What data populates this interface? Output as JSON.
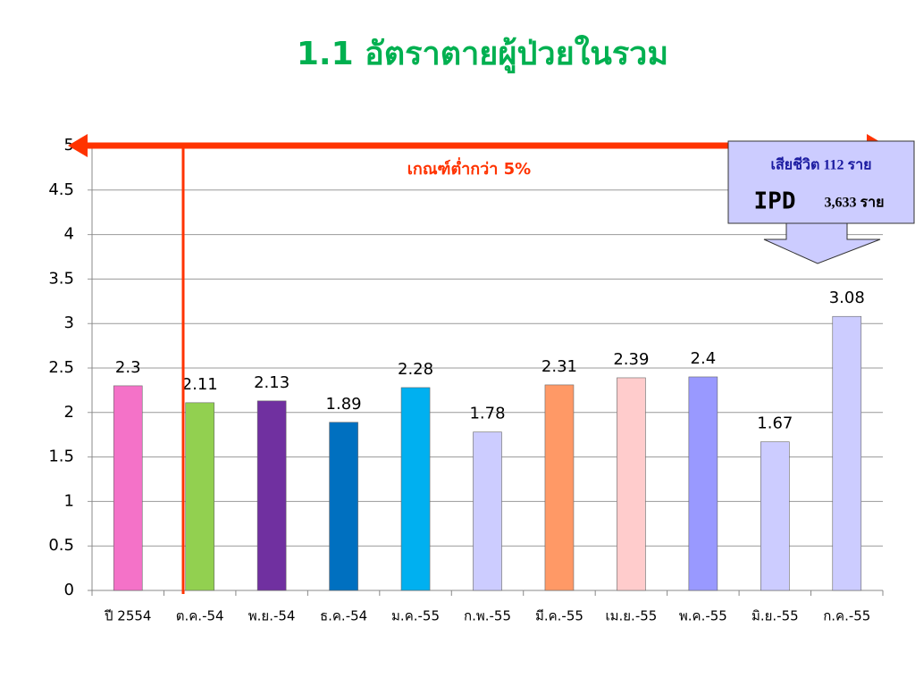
{
  "chart_data": {
    "type": "bar",
    "title": "1.1 อัตราตายผู้ป่วยในรวม",
    "categories": [
      "ปี 2554",
      "ต.ค.-54",
      "พ.ย.-54",
      "ธ.ค.-54",
      "ม.ค.-55",
      "ก.พ.-55",
      "มี.ค.-55",
      "เม.ย.-55",
      "พ.ค.-55",
      "มิ.ย.-55",
      "ก.ค.-55"
    ],
    "values": [
      2.3,
      2.11,
      2.13,
      1.89,
      2.28,
      1.78,
      2.31,
      2.39,
      2.4,
      1.67,
      3.08
    ],
    "colors": [
      "#f472c8",
      "#92d050",
      "#7030a0",
      "#0070c0",
      "#00b0f0",
      "#ccccff",
      "#ff9966",
      "#ffcccc",
      "#9999ff",
      "#ccccff",
      "#ccccff"
    ],
    "ylim": [
      0,
      5
    ],
    "yticks": [
      0,
      0.5,
      1,
      1.5,
      2,
      2.5,
      3,
      3.5,
      4,
      4.5,
      5
    ],
    "grid": true,
    "threshold": {
      "value": 5,
      "label": "เกณฑ์ต่ำกว่า 5%",
      "color": "#ff3300"
    },
    "callout": [
      "เสียชีวิต 112 ราย",
      "IPD",
      "3,633 ราย"
    ]
  }
}
